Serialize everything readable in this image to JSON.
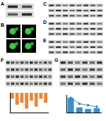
{
  "panels": [
    {
      "label": "A",
      "kind": "blot",
      "lanes": 2,
      "rows": 2
    },
    {
      "label": "B",
      "kind": "micrograph",
      "images": 4
    },
    {
      "label": "C",
      "kind": "blot",
      "lanes": 8,
      "rows": 3
    },
    {
      "label": "D",
      "kind": "blot",
      "lanes": 8,
      "rows": 3
    },
    {
      "label": "E",
      "kind": "blot",
      "lanes": 8,
      "rows": 3
    },
    {
      "label": "F",
      "kind": "blot",
      "lanes": 10,
      "rows": 4
    },
    {
      "label": "G",
      "kind": "blot",
      "lanes": 6,
      "rows": 4
    }
  ],
  "chart_data": [
    {
      "type": "bar",
      "categories": [
        null,
        null,
        null,
        null,
        null,
        null,
        null,
        null
      ],
      "values": [
        -0.3,
        -0.6,
        -0.5,
        -0.8,
        -0.4,
        -0.7,
        -0.3,
        -0.5
      ],
      "color": "#e8893a",
      "ylim": [
        -1,
        0
      ],
      "yticks": [
        -1,
        -0.5,
        0
      ],
      "grid": false,
      "tick_labels": false
    },
    {
      "type": "bar",
      "categories": [
        null,
        null,
        null,
        null
      ],
      "series": [
        {
          "type": "bar",
          "color": "#3a8fd0",
          "values": [
            1,
            0.35,
            0.25,
            0.3
          ]
        },
        {
          "type": "line",
          "color": "#3a8fd0",
          "values": [
            1,
            0.6,
            0.5,
            0.4
          ]
        }
      ],
      "ylim": [
        0,
        1.2
      ],
      "yticks": [
        0,
        0.4,
        0.8,
        1.2
      ],
      "grid": false,
      "tick_labels": false
    }
  ]
}
